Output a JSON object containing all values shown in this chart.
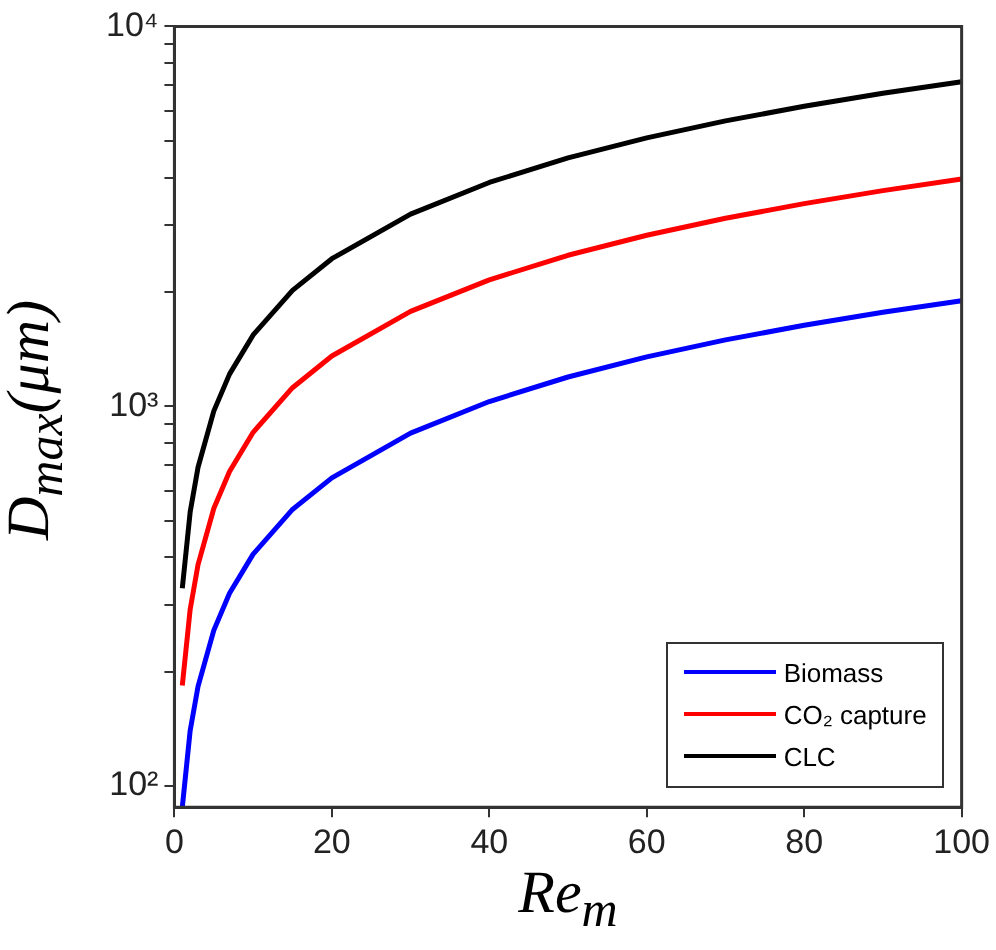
{
  "chart_data": {
    "type": "line",
    "xlabel": "Re$_{m}$",
    "ylabel": "D$_{max}$(μm)",
    "x": [
      1,
      2,
      3,
      5,
      7,
      10,
      15,
      20,
      30,
      40,
      50,
      60,
      70,
      80,
      90,
      100
    ],
    "series": [
      {
        "name": "Biomass",
        "color": "#0000ff",
        "values": [
          88,
          140,
          183,
          257,
          322,
          408,
          535,
          648,
          850,
          1029,
          1194,
          1349,
          1495,
          1634,
          1767,
          1896
        ]
      },
      {
        "name": "CO₂ capture",
        "color": "#ff0000",
        "values": [
          184,
          292,
          383,
          538,
          673,
          854,
          1119,
          1356,
          1777,
          2152,
          2497,
          2820,
          3125,
          3416,
          3695,
          3964
        ]
      },
      {
        "name": "CLC",
        "color": "#000000",
        "values": [
          332,
          527,
          691,
          971,
          1215,
          1541,
          2019,
          2446,
          3205,
          3883,
          4506,
          5088,
          5639,
          6164,
          6668,
          7153
        ]
      }
    ],
    "xlim": [
      0,
      100
    ],
    "xticks": [
      0,
      20,
      40,
      60,
      80,
      100
    ],
    "ylim": [
      88,
      10000
    ],
    "yticks": [
      {
        "value": 100,
        "label": "10²"
      },
      {
        "value": 200,
        "label": null
      },
      {
        "value": 300,
        "label": null
      },
      {
        "value": 400,
        "label": null
      },
      {
        "value": 500,
        "label": null
      },
      {
        "value": 600,
        "label": null
      },
      {
        "value": 700,
        "label": null
      },
      {
        "value": 800,
        "label": null
      },
      {
        "value": 900,
        "label": null
      },
      {
        "value": 1000,
        "label": "10³"
      },
      {
        "value": 2000,
        "label": null
      },
      {
        "value": 3000,
        "label": null
      },
      {
        "value": 4000,
        "label": null
      },
      {
        "value": 5000,
        "label": null
      },
      {
        "value": 6000,
        "label": null
      },
      {
        "value": 7000,
        "label": null
      },
      {
        "value": 8000,
        "label": null
      },
      {
        "value": 9000,
        "label": null
      },
      {
        "value": 10000,
        "label": "10⁴"
      }
    ],
    "log": "y",
    "grid": false,
    "legend": "bottom right",
    "marker": "none",
    "line_style": "solid"
  }
}
